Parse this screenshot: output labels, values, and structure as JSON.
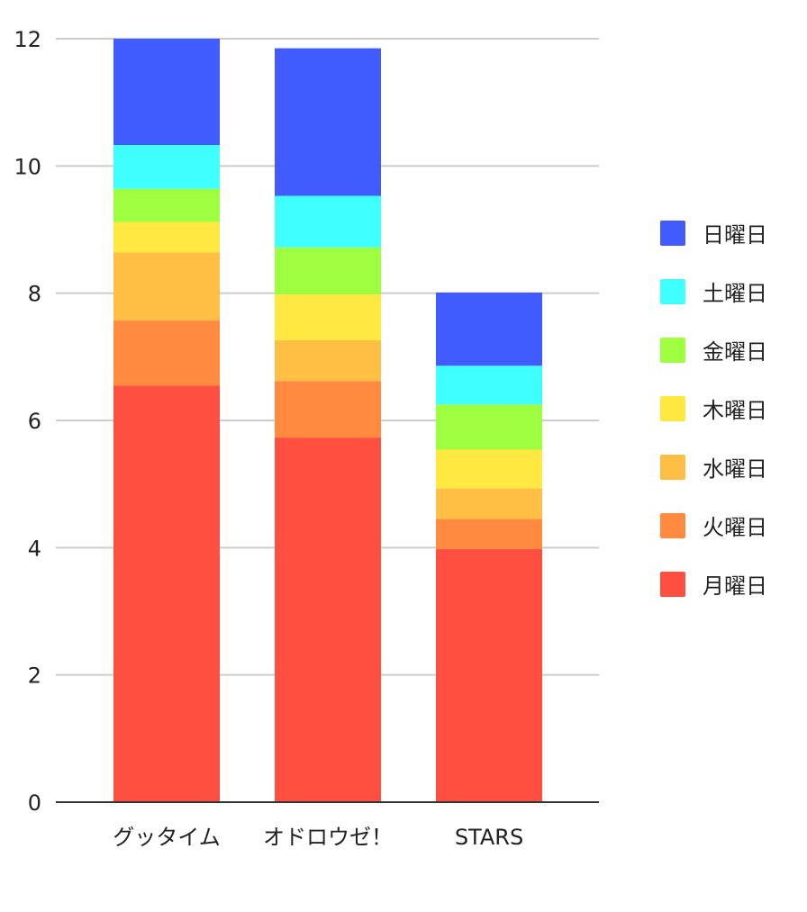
{
  "chart_data": {
    "type": "bar",
    "stacked": true,
    "categories": [
      "グッタイム",
      "オドロウゼ！",
      "STARS"
    ],
    "series": [
      {
        "name": "月曜日",
        "color": "#ff4f40",
        "values": [
          6.55,
          5.73,
          3.98
        ]
      },
      {
        "name": "火曜日",
        "color": "#ff8a40",
        "values": [
          1.02,
          0.89,
          0.47
        ]
      },
      {
        "name": "水曜日",
        "color": "#ffbe44",
        "values": [
          1.07,
          0.64,
          0.48
        ]
      },
      {
        "name": "木曜日",
        "color": "#ffe840",
        "values": [
          0.48,
          0.72,
          0.61
        ]
      },
      {
        "name": "金曜日",
        "color": "#9dff40",
        "values": [
          0.52,
          0.74,
          0.71
        ]
      },
      {
        "name": "土曜日",
        "color": "#40ffff",
        "values": [
          0.69,
          0.81,
          0.61
        ]
      },
      {
        "name": "日曜日",
        "color": "#405cff",
        "values": [
          1.67,
          2.32,
          1.15
        ]
      }
    ],
    "ylim": [
      0,
      12
    ],
    "yticks": [
      "0",
      "2",
      "4",
      "6",
      "8",
      "10",
      "12"
    ],
    "grid": true,
    "legend_position": "right",
    "legend_order": [
      "日曜日",
      "土曜日",
      "金曜日",
      "木曜日",
      "水曜日",
      "火曜日",
      "月曜日"
    ],
    "xlabel": "",
    "ylabel": "",
    "title": ""
  }
}
